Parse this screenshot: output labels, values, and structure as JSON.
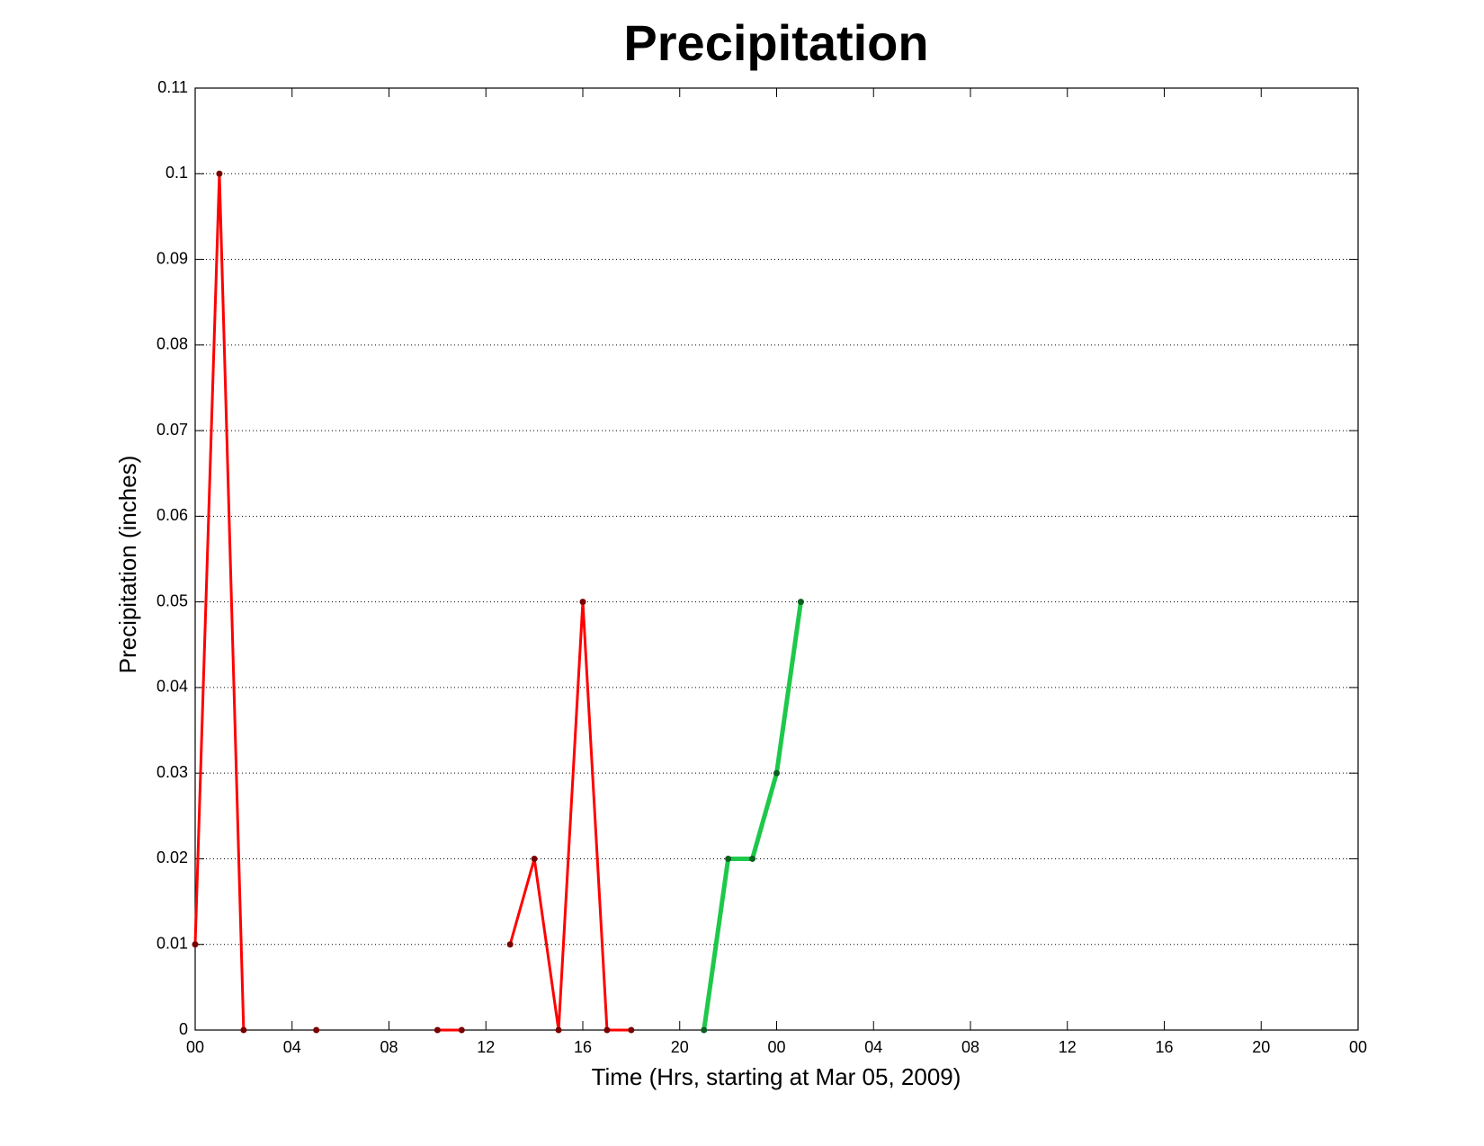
{
  "chart_data": {
    "type": "line",
    "title": "Precipitation",
    "x_label": "Time (Hrs, starting at Mar 05, 2009)",
    "y_label": "Precipitation (inches)",
    "series": [
      {
        "color": "#ff0000",
        "x": [
          0,
          1,
          2,
          3,
          5,
          6,
          10,
          11,
          12,
          13,
          14,
          15,
          16,
          17,
          18
        ],
        "values": [
          0.01,
          0.1,
          0,
          null,
          0,
          null,
          0,
          0,
          null,
          0.01,
          0.02,
          0,
          0.05,
          0,
          0
        ]
      },
      {
        "color": "#1ec84a",
        "x": [
          21,
          22,
          23,
          24,
          25
        ],
        "values": [
          0,
          0.02,
          0.02,
          0.03,
          0.05
        ]
      }
    ],
    "xlim": [
      0,
      48
    ],
    "xticks": [
      {
        "value": 0,
        "label": "00"
      },
      {
        "value": 4,
        "label": "04"
      },
      {
        "value": 8,
        "label": "08"
      },
      {
        "value": 12,
        "label": "12"
      },
      {
        "value": 16,
        "label": "16"
      },
      {
        "value": 20,
        "label": "20"
      },
      {
        "value": 24,
        "label": "00"
      },
      {
        "value": 28,
        "label": "04"
      },
      {
        "value": 32,
        "label": "08"
      },
      {
        "value": 36,
        "label": "12"
      },
      {
        "value": 40,
        "label": "16"
      },
      {
        "value": 44,
        "label": "20"
      },
      {
        "value": 48,
        "label": "00"
      }
    ],
    "ylim": [
      0,
      0.11
    ],
    "yticks": [
      0,
      0.01,
      0.02,
      0.03,
      0.04,
      0.05,
      0.06,
      0.07,
      0.08,
      0.09,
      0.1,
      0.11
    ],
    "grid": true
  }
}
